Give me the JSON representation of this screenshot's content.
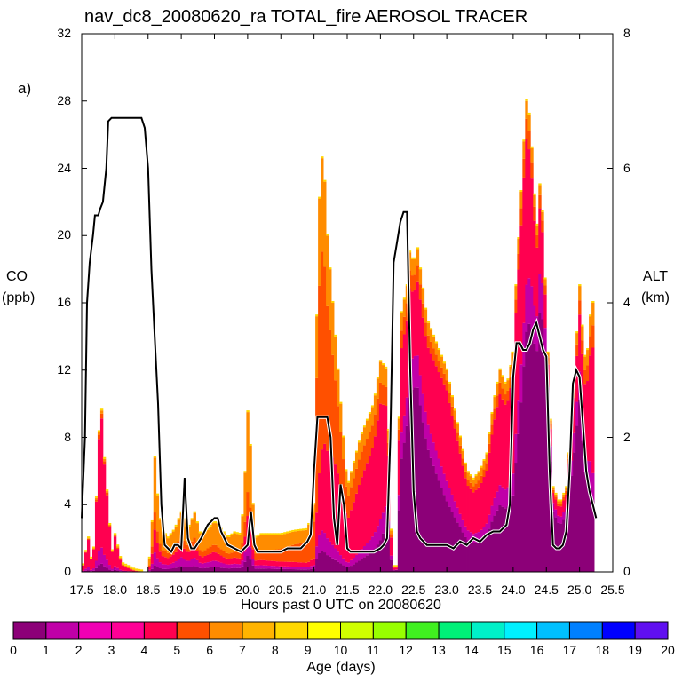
{
  "chart_data": {
    "type": "area",
    "title": "nav_dc8_20080620_ra TOTAL_fire AEROSOL TRACER",
    "panel_label": "a)",
    "xlabel": "Hours past 0 UTC on 20080620",
    "ylabel_left": [
      "CO",
      "(ppb)"
    ],
    "ylabel_right": [
      "ALT",
      "(km)"
    ],
    "xlim": [
      17.5,
      25.5
    ],
    "ylim_left": [
      0,
      32
    ],
    "ylim_right": [
      0,
      8
    ],
    "x_ticks": [
      "17.5",
      "18.0",
      "18.5",
      "19.0",
      "19.5",
      "20.0",
      "20.5",
      "21.0",
      "21.5",
      "22.0",
      "22.5",
      "23.0",
      "23.5",
      "24.0",
      "24.5",
      "25.0",
      "25.5"
    ],
    "y_ticks_left": [
      "0",
      "4",
      "8",
      "12",
      "16",
      "20",
      "24",
      "28",
      "32"
    ],
    "y_ticks_right": [
      "0",
      "2",
      "4",
      "6",
      "8"
    ],
    "colorbar": {
      "label": "Age (days)",
      "ticks": [
        "0",
        "1",
        "2",
        "3",
        "4",
        "5",
        "6",
        "7",
        "8",
        "9",
        "10",
        "11",
        "12",
        "13",
        "14",
        "15",
        "16",
        "17",
        "18",
        "19",
        "20"
      ],
      "colors": [
        "#8c0078",
        "#c000a8",
        "#f000b4",
        "#ff0096",
        "#ff0050",
        "#ff5000",
        "#ff8c00",
        "#ffb400",
        "#ffd800",
        "#ffff00",
        "#d0ff00",
        "#98ff00",
        "#40f020",
        "#00f078",
        "#00f0c8",
        "#00f0ff",
        "#00c0ff",
        "#0080ff",
        "#0000ff",
        "#6010f0"
      ]
    },
    "series_total_co": {
      "x": [
        17.5,
        17.55,
        17.6,
        17.65,
        17.7,
        17.75,
        17.8,
        17.85,
        17.9,
        17.95,
        18.0,
        18.1,
        18.2,
        18.3,
        18.45,
        18.5,
        18.55,
        18.6,
        18.65,
        18.7,
        18.8,
        18.9,
        19.0,
        19.05,
        19.1,
        19.2,
        19.3,
        19.4,
        19.5,
        19.6,
        19.7,
        19.8,
        19.9,
        19.95,
        20.0,
        20.05,
        20.1,
        20.2,
        20.3,
        20.5,
        20.7,
        20.9,
        21.0,
        21.05,
        21.1,
        21.15,
        21.2,
        21.3,
        21.4,
        21.5,
        21.6,
        21.7,
        21.8,
        21.9,
        22.0,
        22.1,
        22.15,
        22.2,
        22.25,
        22.3,
        22.4,
        22.45,
        22.5,
        22.55,
        22.6,
        22.7,
        22.8,
        22.9,
        23.0,
        23.1,
        23.2,
        23.3,
        23.4,
        23.5,
        23.6,
        23.7,
        23.8,
        23.9,
        24.0,
        24.05,
        24.1,
        24.15,
        24.2,
        24.25,
        24.3,
        24.35,
        24.4,
        24.45,
        24.5,
        24.55,
        24.6,
        24.7,
        24.8,
        24.9,
        25.0,
        25.05,
        25.1,
        25.15,
        25.2
      ],
      "y": [
        0,
        1,
        2,
        0.5,
        2,
        8,
        9.6,
        6,
        4,
        1,
        2.2,
        0.5,
        0.3,
        0.1,
        0,
        0,
        2,
        6.8,
        4,
        2.5,
        2,
        2.5,
        3.5,
        3,
        2.5,
        3.5,
        2,
        2.5,
        3,
        2.5,
        2,
        2.3,
        2.2,
        5,
        9.5,
        7,
        2,
        2.2,
        2.2,
        2.2,
        2.4,
        2.5,
        4,
        18,
        25,
        24,
        20,
        15,
        10,
        5,
        6.5,
        8,
        9,
        10,
        12.5,
        12,
        3,
        0.3,
        0.3,
        15,
        17,
        19.5,
        18,
        19.5,
        18,
        15,
        14,
        13,
        12,
        10,
        8,
        6,
        5.5,
        6,
        7,
        10,
        12,
        11,
        13,
        18,
        21,
        25,
        28,
        27,
        24,
        20,
        23,
        21,
        15,
        10,
        5,
        4,
        5,
        10,
        17,
        14,
        12,
        15,
        16
      ]
    },
    "series_altitude_km": {
      "x": [
        17.5,
        17.55,
        17.58,
        17.62,
        17.67,
        17.7,
        17.75,
        17.78,
        17.82,
        17.87,
        17.9,
        17.95,
        17.98,
        18.0,
        18.1,
        18.2,
        18.3,
        18.4,
        18.45,
        18.5,
        18.55,
        18.6,
        18.65,
        18.7,
        18.75,
        18.8,
        18.85,
        18.9,
        18.95,
        19.0,
        19.05,
        19.1,
        19.15,
        19.2,
        19.3,
        19.4,
        19.5,
        19.55,
        19.6,
        19.7,
        19.8,
        19.9,
        20.0,
        20.05,
        20.1,
        20.15,
        20.2,
        20.3,
        20.4,
        20.5,
        20.6,
        20.7,
        20.8,
        20.85,
        20.9,
        20.95,
        21.0,
        21.05,
        21.1,
        21.15,
        21.2,
        21.25,
        21.3,
        21.35,
        21.4,
        21.45,
        21.5,
        21.55,
        21.6,
        21.7,
        21.8,
        21.9,
        22.0,
        22.05,
        22.1,
        22.15,
        22.2,
        22.25,
        22.3,
        22.35,
        22.4,
        22.45,
        22.5,
        22.55,
        22.6,
        22.7,
        22.8,
        22.9,
        23.0,
        23.1,
        23.2,
        23.3,
        23.4,
        23.5,
        23.6,
        23.7,
        23.8,
        23.9,
        23.95,
        24.0,
        24.05,
        24.1,
        24.15,
        24.2,
        24.25,
        24.3,
        24.35,
        24.4,
        24.45,
        24.5,
        24.55,
        24.6,
        24.65,
        24.7,
        24.75,
        24.8,
        24.85,
        24.9,
        24.95,
        25.0,
        25.05,
        25.1,
        25.15,
        25.2,
        25.25
      ],
      "y": [
        0.8,
        2.0,
        4.0,
        4.6,
        5.0,
        5.3,
        5.3,
        5.4,
        5.5,
        6.0,
        6.7,
        6.75,
        6.75,
        6.75,
        6.75,
        6.75,
        6.75,
        6.75,
        6.6,
        6.0,
        4.5,
        3.5,
        2.5,
        1.0,
        0.4,
        0.35,
        0.3,
        0.4,
        0.4,
        0.35,
        1.4,
        0.5,
        0.35,
        0.35,
        0.5,
        0.7,
        0.8,
        0.8,
        0.6,
        0.4,
        0.35,
        0.3,
        0.4,
        0.9,
        0.4,
        0.3,
        0.3,
        0.3,
        0.3,
        0.3,
        0.35,
        0.35,
        0.35,
        0.4,
        0.45,
        0.55,
        1.5,
        2.3,
        2.3,
        2.3,
        2.3,
        2.0,
        0.8,
        0.4,
        1.3,
        1.0,
        0.35,
        0.3,
        0.3,
        0.3,
        0.3,
        0.3,
        0.35,
        0.4,
        0.5,
        2.0,
        4.6,
        4.9,
        5.2,
        5.35,
        5.35,
        3.0,
        1.2,
        0.6,
        0.5,
        0.4,
        0.4,
        0.4,
        0.4,
        0.35,
        0.45,
        0.4,
        0.5,
        0.45,
        0.55,
        0.6,
        0.6,
        0.7,
        1.0,
        2.9,
        3.4,
        3.4,
        3.3,
        3.3,
        3.4,
        3.6,
        3.7,
        3.5,
        3.3,
        3.2,
        1.5,
        0.4,
        0.35,
        0.35,
        0.4,
        0.6,
        1.5,
        2.8,
        3.0,
        2.9,
        2.2,
        1.5,
        1.2,
        1.0,
        0.8
      ]
    },
    "age_fractions_by_time": {
      "x": [
        17.5,
        18.0,
        18.5,
        19.0,
        20.0,
        21.0,
        21.5,
        22.0,
        22.5,
        23.0,
        23.5,
        24.0,
        24.5,
        25.0,
        25.3
      ],
      "age_0": [
        0.05,
        0.05,
        0.05,
        0.1,
        0.1,
        0.05,
        0.05,
        0.15,
        0.6,
        0.35,
        0.3,
        0.35,
        0.75,
        0.6,
        0.1
      ],
      "age_1": [
        0.1,
        0.1,
        0.1,
        0.15,
        0.1,
        0.05,
        0.05,
        0.1,
        0.1,
        0.1,
        0.1,
        0.1,
        0.1,
        0.1,
        0.1
      ],
      "age_3_4": [
        0.8,
        0.8,
        0.2,
        0.2,
        0.15,
        0.1,
        0.5,
        0.55,
        0.2,
        0.45,
        0.45,
        0.45,
        0.1,
        0.2,
        0.6
      ],
      "age_5": [
        0.03,
        0.03,
        0.15,
        0.15,
        0.15,
        0.55,
        0.25,
        0.1,
        0.05,
        0.05,
        0.07,
        0.05,
        0.03,
        0.05,
        0.1
      ],
      "age_6_plus": [
        0.02,
        0.02,
        0.5,
        0.4,
        0.5,
        0.25,
        0.15,
        0.1,
        0.05,
        0.05,
        0.08,
        0.05,
        0.02,
        0.05,
        0.1
      ]
    }
  }
}
